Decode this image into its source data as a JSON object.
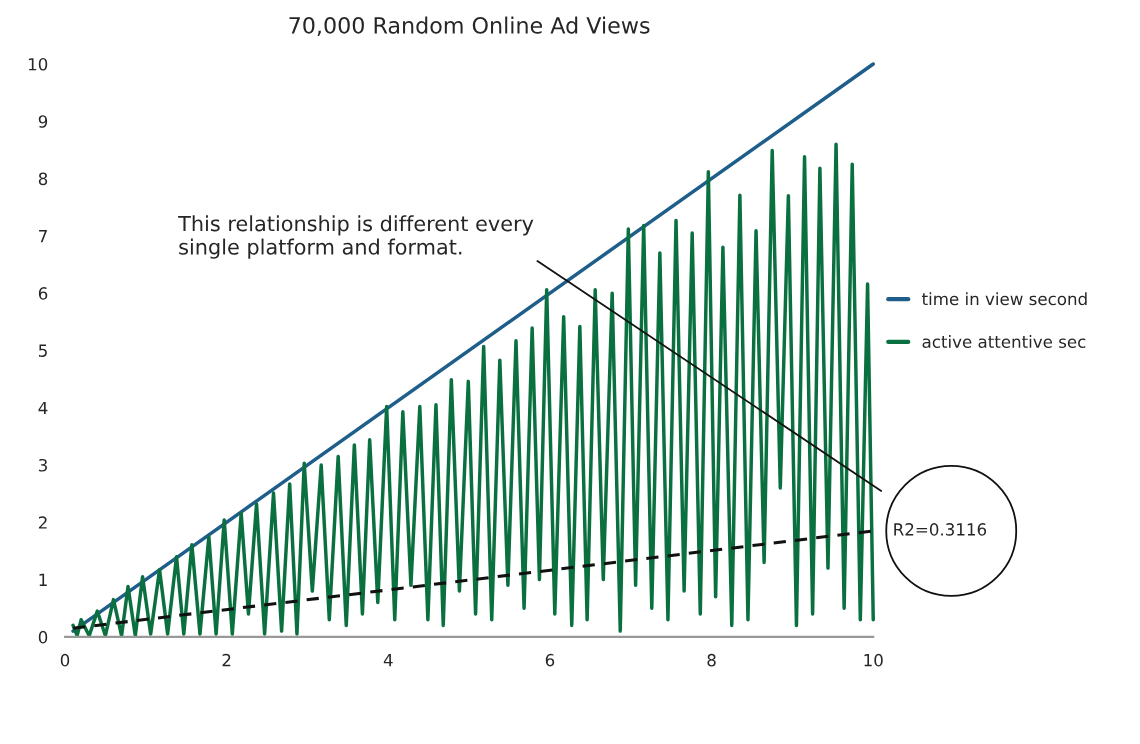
{
  "chart_data": {
    "type": "line",
    "title": "70,000 Random Online Ad Views",
    "xlim": [
      0,
      10
    ],
    "ylim": [
      0,
      10
    ],
    "xticks": [
      0,
      2,
      4,
      6,
      8,
      10
    ],
    "yticks": [
      0,
      1,
      2,
      3,
      4,
      5,
      6,
      7,
      8,
      9,
      10
    ],
    "legend": "right",
    "series": [
      {
        "name": "time in view second",
        "color": "#1f5e8a",
        "x": [
          0.1,
          10
        ],
        "values": [
          0.1,
          10
        ]
      },
      {
        "name": "active attentive sec",
        "color": "#0b7040",
        "x": [
          0.1,
          0.15,
          0.2,
          0.3,
          0.4,
          0.5,
          0.6,
          0.7,
          0.78,
          0.87,
          0.96,
          1.06,
          1.17,
          1.27,
          1.38,
          1.47,
          1.57,
          1.67,
          1.78,
          1.87,
          1.97,
          2.07,
          2.18,
          2.27,
          2.37,
          2.47,
          2.58,
          2.68,
          2.78,
          2.87,
          2.96,
          3.06,
          3.17,
          3.27,
          3.38,
          3.48,
          3.58,
          3.68,
          3.77,
          3.87,
          3.98,
          4.08,
          4.18,
          4.28,
          4.39,
          4.49,
          4.59,
          4.68,
          4.78,
          4.88,
          4.99,
          5.08,
          5.18,
          5.28,
          5.38,
          5.48,
          5.58,
          5.68,
          5.78,
          5.87,
          5.96,
          6.06,
          6.17,
          6.27,
          6.37,
          6.46,
          6.56,
          6.66,
          6.77,
          6.87,
          6.97,
          7.06,
          7.16,
          7.26,
          7.36,
          7.46,
          7.56,
          7.66,
          7.76,
          7.86,
          7.96,
          8.05,
          8.14,
          8.25,
          8.35,
          8.45,
          8.55,
          8.65,
          8.75,
          8.85,
          8.95,
          9.05,
          9.15,
          9.25,
          9.34,
          9.44,
          9.54,
          9.64,
          9.74,
          9.84,
          9.93,
          10
        ],
        "values": [
          0.2,
          0.02,
          0.3,
          0.02,
          0.45,
          0.02,
          0.65,
          0.02,
          0.88,
          0.02,
          1.05,
          0.05,
          1.17,
          0.05,
          1.4,
          0.05,
          1.61,
          0.05,
          1.75,
          0.05,
          2.04,
          0.05,
          2.16,
          0.4,
          2.32,
          0.05,
          2.51,
          0.1,
          2.67,
          0.05,
          3.03,
          0.8,
          3.0,
          0.3,
          3.15,
          0.2,
          3.35,
          0.4,
          3.44,
          0.6,
          4.02,
          0.3,
          3.93,
          0.9,
          4.02,
          0.3,
          4.05,
          0.2,
          4.49,
          0.8,
          4.46,
          0.4,
          5.07,
          0.3,
          4.83,
          0.9,
          5.17,
          0.5,
          5.39,
          1.0,
          6.06,
          0.4,
          5.59,
          0.2,
          5.42,
          0.3,
          6.06,
          1.0,
          6.0,
          0.1,
          7.12,
          0.9,
          7.18,
          0.5,
          6.7,
          0.3,
          7.27,
          0.8,
          7.05,
          0.4,
          8.12,
          0.7,
          6.8,
          0.2,
          7.71,
          0.3,
          7.09,
          1.3,
          8.49,
          2.6,
          7.7,
          0.2,
          8.38,
          0.4,
          8.18,
          1.2,
          8.6,
          0.5,
          8.25,
          0.3,
          6.16,
          0.3
        ]
      },
      {
        "color": "#111111",
        "line_style": "dashed",
        "x": [
          0.1,
          10
        ],
        "values": [
          0.15,
          1.85
        ]
      }
    ],
    "annotations": [
      "This relationship is different every single platform and format.",
      {
        "text": "R2=0.3116",
        "x": 10,
        "y": 1.85
      }
    ]
  }
}
